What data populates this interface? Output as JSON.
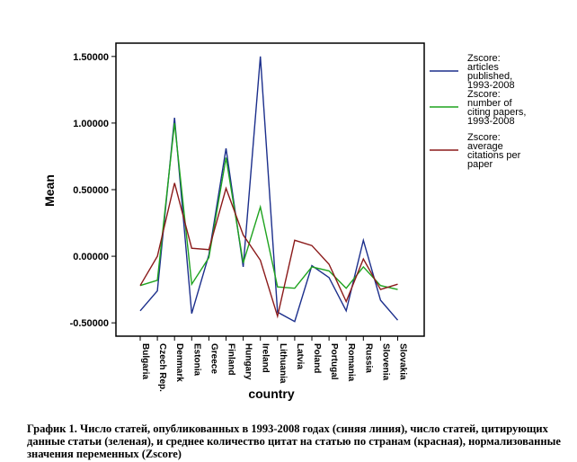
{
  "chart_data": {
    "type": "line",
    "xlabel": "country",
    "ylabel": "Mean",
    "ylim": [
      -0.6,
      1.6
    ],
    "yticks": [
      "1.50000",
      "1.00000",
      "0.50000",
      "0.00000",
      "-0.50000"
    ],
    "categories": [
      "Bulgaria",
      "Czech Rep.",
      "Denmark",
      "Estonia",
      "Greece",
      "Finland",
      "Hungary",
      "Ireland",
      "Lithuania",
      "Latvia",
      "Poland",
      "Portugal",
      "Romania",
      "Russia",
      "Slovenia",
      "Slovakia"
    ],
    "legend_position": "right",
    "grid": false,
    "series": [
      {
        "name": "Zscore: articles published, 1993-2008",
        "color": "#1c2f8c",
        "values": [
          -0.41,
          -0.26,
          1.04,
          -0.43,
          0.01,
          0.81,
          -0.08,
          1.5,
          -0.42,
          -0.49,
          -0.07,
          -0.16,
          -0.41,
          0.12,
          -0.33,
          -0.48
        ]
      },
      {
        "name": "Zscore: number of citing papers, 1993-2008",
        "color": "#1fa31f",
        "values": [
          -0.22,
          -0.18,
          1.0,
          -0.21,
          -0.01,
          0.74,
          -0.05,
          0.37,
          -0.23,
          -0.24,
          -0.08,
          -0.11,
          -0.24,
          -0.08,
          -0.22,
          -0.25
        ]
      },
      {
        "name": "Zscore: average citations per paper",
        "color": "#8b1a1a",
        "values": [
          -0.22,
          0.0,
          0.55,
          0.06,
          0.05,
          0.51,
          0.16,
          -0.03,
          -0.45,
          0.12,
          0.08,
          -0.06,
          -0.34,
          -0.02,
          -0.25,
          -0.21
        ]
      }
    ]
  },
  "legend": {
    "items": [
      {
        "lines": [
          "Zscore:",
          "articles",
          "published,",
          "1993-2008"
        ],
        "color": "#1c2f8c"
      },
      {
        "lines": [
          "Zscore:",
          "number of",
          "citing papers,",
          "1993-2008"
        ],
        "color": "#1fa31f"
      },
      {
        "lines": [
          "Zscore:",
          "average",
          "citations per",
          "paper"
        ],
        "color": "#8b1a1a"
      }
    ]
  },
  "caption": "График 1. Число статей, опубликованных в 1993-2008 годах (синяя линия), число статей, цитирующих данные статьи (зеленая), и среднее количество цитат на статью по странам (красная), нормализованные значения переменных (Zscore)"
}
